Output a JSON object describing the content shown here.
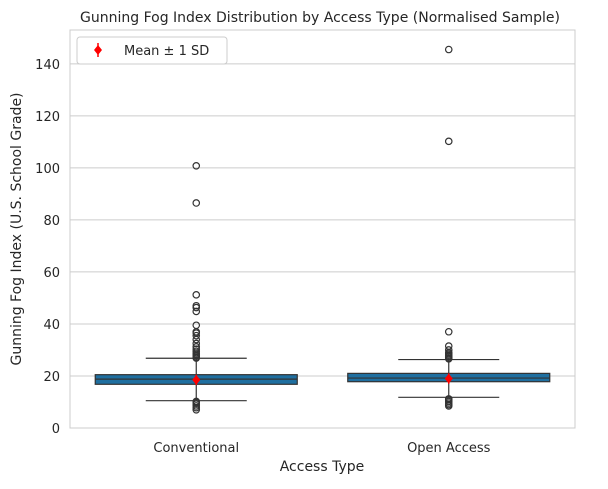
{
  "chart_data": {
    "type": "box",
    "title": "Gunning Fog Index Distribution by Access Type (Normalised Sample)",
    "xlabel": "Access Type",
    "ylabel": "Gunning Fog Index (U.S. School Grade)",
    "ylim": [
      0,
      153
    ],
    "yticks": [
      0,
      20,
      40,
      60,
      80,
      100,
      120,
      140
    ],
    "grid": "horizontal",
    "legend": {
      "position": "top-left",
      "label": "Mean ± 1 SD",
      "marker": "red-diamond-errorbar"
    },
    "colors": {
      "box": "#1f6fa0",
      "outline": "#333333",
      "mean": "#ff0000",
      "grid": "#cccccc"
    },
    "categories": [
      "Conventional",
      "Open Access"
    ],
    "boxes": [
      {
        "category": "Conventional",
        "whisker_low": 10.5,
        "q1": 16.8,
        "median": 18.8,
        "q3": 20.5,
        "whisker_high": 26.8,
        "mean": 18.5,
        "sd": 2.0,
        "outliers": [
          7.0,
          7.8,
          8.5,
          9.2,
          9.8,
          10.2,
          26.9,
          27.3,
          27.8,
          28.3,
          28.8,
          29.5,
          30.3,
          31.2,
          32.5,
          34.0,
          35.5,
          36.5,
          37.0,
          39.5,
          44.8,
          46.3,
          47.0,
          51.2,
          86.5,
          100.8
        ]
      },
      {
        "category": "Open Access",
        "whisker_low": 11.8,
        "q1": 17.8,
        "median": 19.2,
        "q3": 21.0,
        "whisker_high": 26.3,
        "mean": 19.0,
        "sd": 2.0,
        "outliers": [
          8.5,
          9.0,
          9.6,
          10.2,
          10.8,
          11.2,
          26.6,
          27.0,
          27.5,
          28.0,
          28.5,
          29.0,
          30.0,
          31.5,
          37.0,
          110.2,
          145.5
        ]
      }
    ]
  }
}
